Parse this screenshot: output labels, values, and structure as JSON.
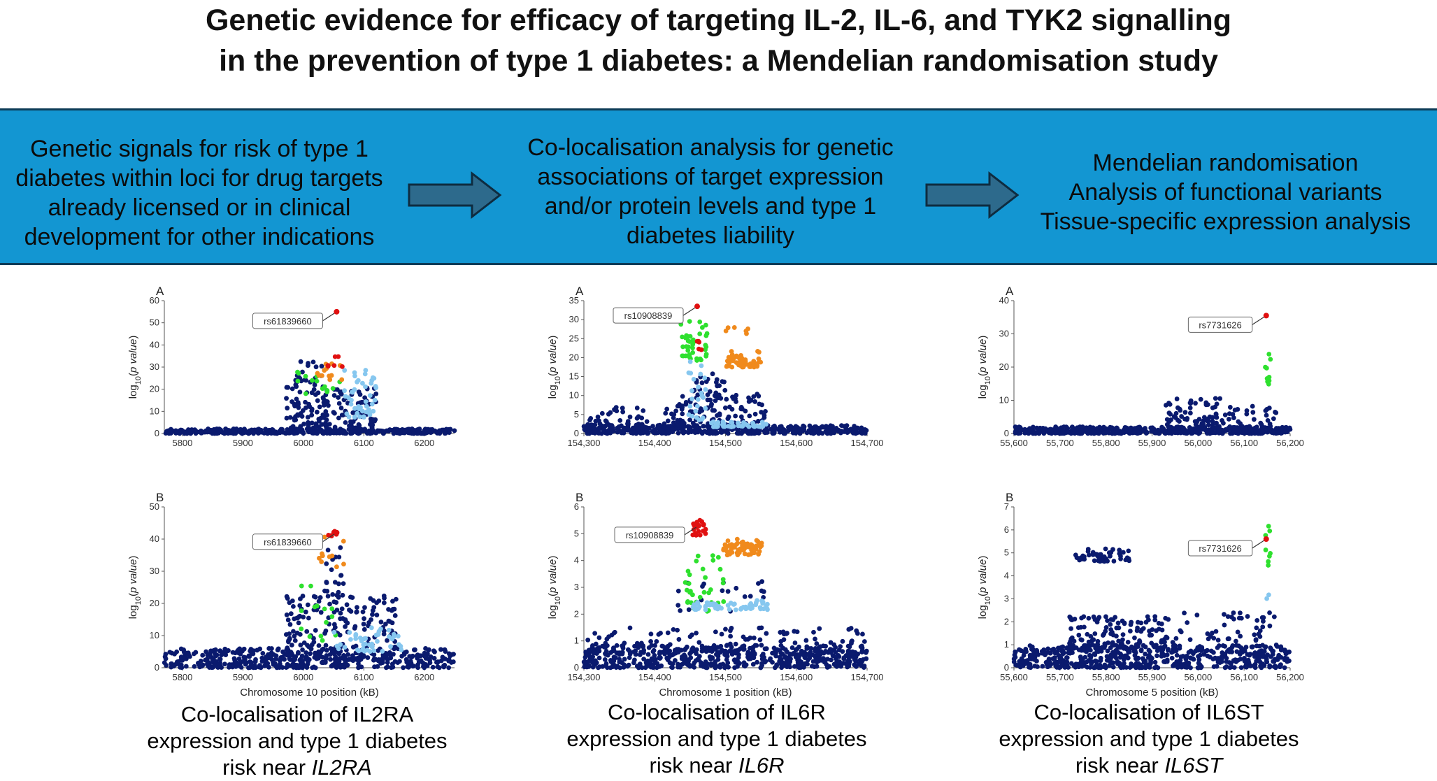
{
  "title": {
    "line1": "Genetic evidence for efficacy of targeting IL-2, IL-6, and TYK2 signalling",
    "line2": "in the prevention of type 1 diabetes: a Mendelian randomisation study"
  },
  "workflow": {
    "step1": [
      "Genetic signals for risk of type 1",
      "diabetes within loci for drug targets",
      "already licensed or in clinical",
      "development for other indications"
    ],
    "step2": [
      "Co-localisation analysis for genetic",
      "associations of target expression",
      "and/or protein levels and type 1",
      "diabetes liability"
    ],
    "step3": [
      "Mendelian randomisation",
      "Analysis of functional variants",
      "Tissue-specific expression analysis"
    ],
    "arrow_icon": "right-arrow-icon"
  },
  "colors": {
    "band": "#1396d2",
    "navy": "#0a1a6e",
    "lightblue": "#86c7ef",
    "green": "#2ee02e",
    "orange": "#f08a1c",
    "red": "#e01010",
    "arrow_fill": "#2d6a8c"
  },
  "y_axis_label": "log10(p value)",
  "chart_data": [
    {
      "id": "il2ra-a",
      "type": "scatter",
      "panel": "A",
      "xlim": [
        5770,
        6250
      ],
      "ylim": [
        0,
        60
      ],
      "xticks": [
        5800,
        5900,
        6000,
        6100,
        6200
      ],
      "xtick_labels": [
        "5800",
        "5900",
        "6000",
        "6100",
        "6200"
      ],
      "yticks": [
        0,
        10,
        20,
        30,
        40,
        50,
        60
      ],
      "lead_snp": {
        "label": "rs61839660",
        "x": 6055,
        "y": 55
      },
      "xlabel": ""
    },
    {
      "id": "il2ra-b",
      "type": "scatter",
      "panel": "B",
      "xlim": [
        5770,
        6250
      ],
      "ylim": [
        0,
        50
      ],
      "xticks": [
        5800,
        5900,
        6000,
        6100,
        6200
      ],
      "xtick_labels": [
        "5800",
        "5900",
        "6000",
        "6100",
        "6200"
      ],
      "yticks": [
        0,
        10,
        20,
        30,
        40,
        50
      ],
      "lead_snp": {
        "label": "rs61839660",
        "x": 6055,
        "y": 42
      },
      "xlabel": "Chromosome 10 position (kB)"
    },
    {
      "id": "il6r-a",
      "type": "scatter",
      "panel": "A",
      "xlim": [
        154300,
        154700
      ],
      "ylim": [
        0,
        35
      ],
      "xticks": [
        154300,
        154400,
        154500,
        154600,
        154700
      ],
      "xtick_labels": [
        "154,300",
        "154,400",
        "154,500",
        "154,600",
        "154,700"
      ],
      "yticks": [
        0,
        5,
        10,
        15,
        20,
        25,
        30,
        35
      ],
      "lead_snp": {
        "label": "rs10908839",
        "x": 154460,
        "y": 33.5
      },
      "xlabel": ""
    },
    {
      "id": "il6r-b",
      "type": "scatter",
      "panel": "B",
      "xlim": [
        154300,
        154700
      ],
      "ylim": [
        0,
        6
      ],
      "xticks": [
        154300,
        154400,
        154500,
        154600,
        154700
      ],
      "xtick_labels": [
        "154,300",
        "154,400",
        "154,500",
        "154,600",
        "154,700"
      ],
      "yticks": [
        0,
        1,
        2,
        3,
        4,
        5,
        6
      ],
      "lead_snp": {
        "label": "rs10908839",
        "x": 154462,
        "y": 5.3
      },
      "xlabel": "Chromosome 1 position (kB)"
    },
    {
      "id": "il6st-a",
      "type": "scatter",
      "panel": "A",
      "xlim": [
        55600,
        56200
      ],
      "ylim": [
        0,
        40
      ],
      "xticks": [
        55600,
        55700,
        55800,
        55900,
        56000,
        56100,
        56200
      ],
      "xtick_labels": [
        "55,600",
        "55,700",
        "55,800",
        "55,900",
        "56,000",
        "56,100",
        "56,200"
      ],
      "yticks": [
        0,
        10,
        20,
        30,
        40
      ],
      "lead_snp": {
        "label": "rs7731626",
        "x": 56148,
        "y": 35.5
      },
      "xlabel": ""
    },
    {
      "id": "il6st-b",
      "type": "scatter",
      "panel": "B",
      "xlim": [
        55600,
        56200
      ],
      "ylim": [
        0,
        7
      ],
      "xticks": [
        55600,
        55700,
        55800,
        55900,
        56000,
        56100,
        56200
      ],
      "xtick_labels": [
        "55,600",
        "55,700",
        "55,800",
        "55,900",
        "56,000",
        "56,100",
        "56,200"
      ],
      "yticks": [
        0,
        1,
        2,
        3,
        4,
        5,
        6,
        7
      ],
      "lead_snp": {
        "label": "rs7731626",
        "x": 56148,
        "y": 5.6
      },
      "xlabel": "Chromosome 5 position (kB)"
    }
  ],
  "captions": [
    {
      "line1": "Co-localisation of IL2RA",
      "line2": "expression and type 1 diabetes",
      "line3": "risk near ",
      "gene": "IL2RA"
    },
    {
      "line1": "Co-localisation of IL6R",
      "line2": "expression and type 1 diabetes",
      "line3": "risk near ",
      "gene": "IL6R"
    },
    {
      "line1": "Co-localisation of IL6ST",
      "line2": "expression and type 1 diabetes",
      "line3": "risk near ",
      "gene": "IL6ST"
    }
  ]
}
